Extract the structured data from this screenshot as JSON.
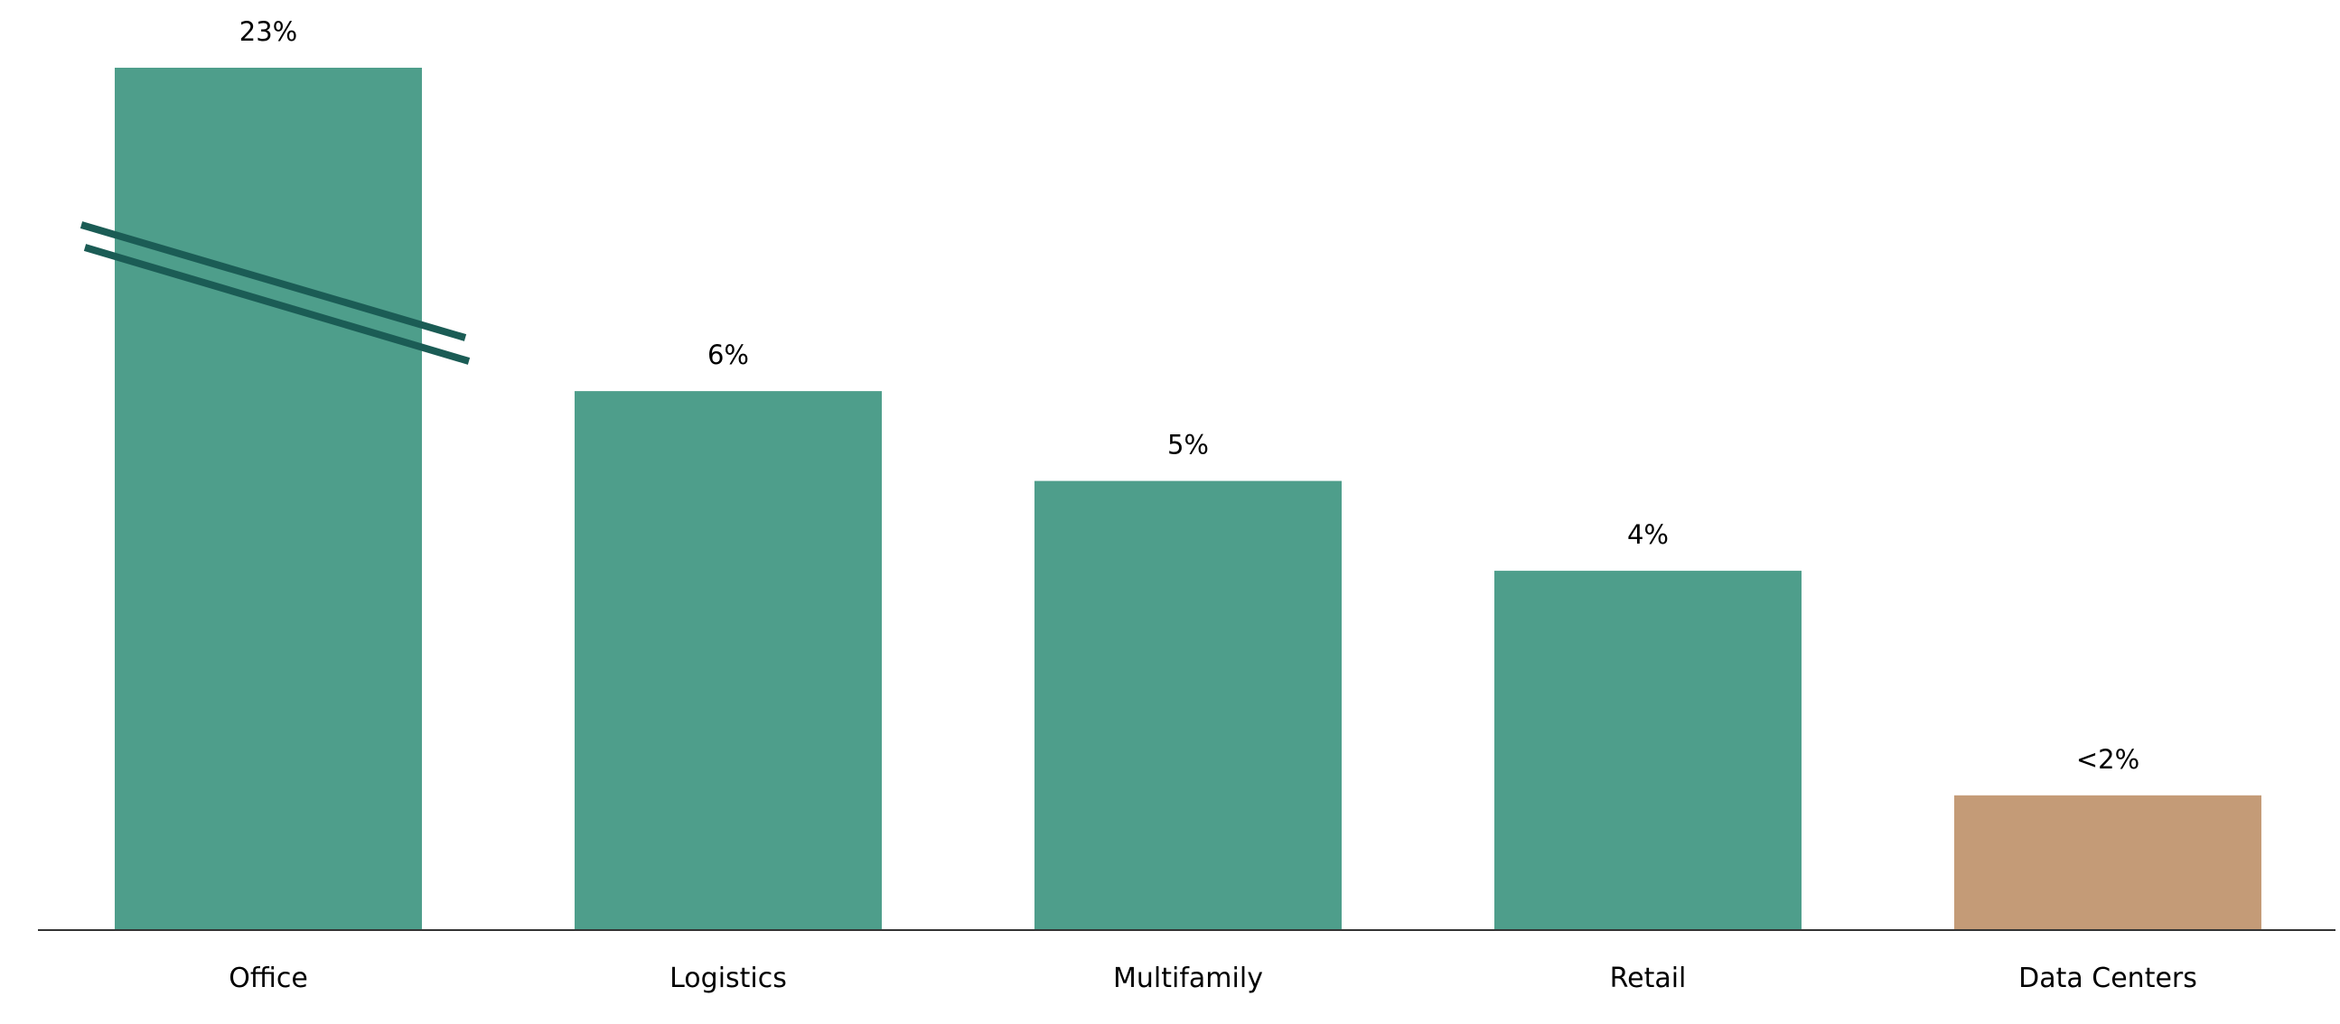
{
  "chart_data": {
    "type": "bar",
    "categories": [
      "Office",
      "Logistics",
      "Multifamily",
      "Retail",
      "Data Centers"
    ],
    "values": [
      23,
      6,
      5,
      4,
      1.5
    ],
    "value_labels": [
      "23%",
      "6%",
      "5%",
      "4%",
      "<2%"
    ],
    "title": "",
    "xlabel": "",
    "ylabel": "",
    "ylim": [
      0,
      9.6
    ],
    "axis_break": true,
    "grid": false,
    "legend": "none",
    "colors": {
      "default": "#4e9e8b",
      "highlight": "#c49b77",
      "highlight_category": "Data Centers",
      "break_marks": "#1b5c55",
      "axis": "#333333"
    }
  }
}
